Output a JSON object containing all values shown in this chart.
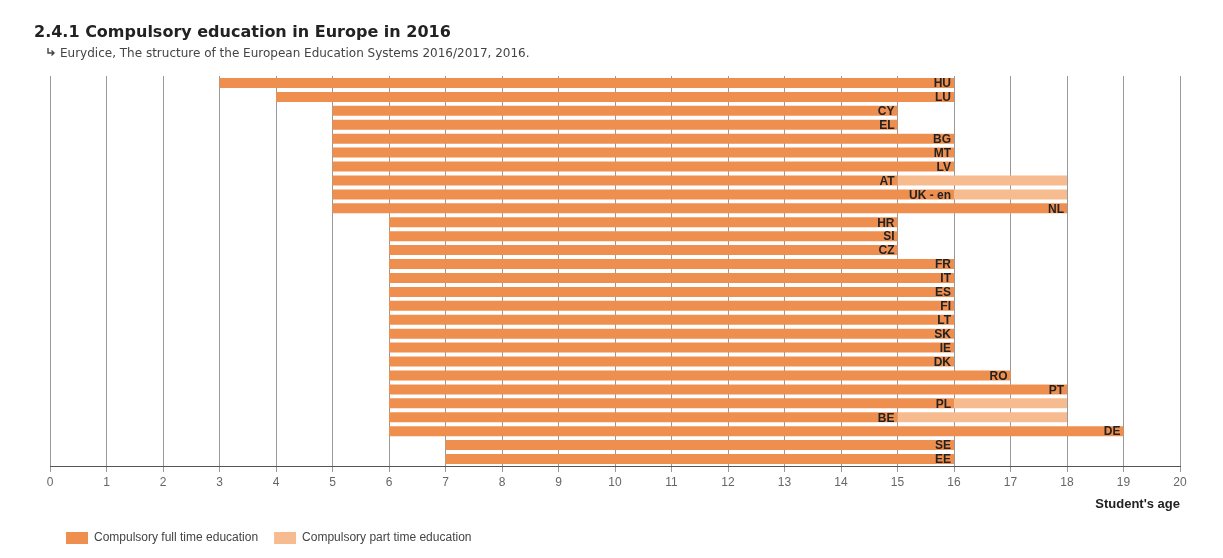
{
  "chart_data": {
    "type": "bar",
    "orientation": "horizontal",
    "title": "2.4.1 Compulsory education in Europe in 2016",
    "subtitle": "Eurydice, The structure of the European Education Systems 2016/2017, 2016.",
    "xlabel": "Student's age",
    "categories": [
      "HU",
      "LU",
      "CY",
      "EL",
      "BG",
      "MT",
      "LV",
      "AT",
      "UK - en",
      "NL",
      "HR",
      "SI",
      "CZ",
      "FR",
      "IT",
      "ES",
      "FI",
      "LT",
      "SK",
      "IE",
      "DK",
      "RO",
      "PT",
      "PL",
      "BE",
      "DE",
      "SE",
      "EE"
    ],
    "series": [
      {
        "name": "Compulsory full time education",
        "color": "#ef8f4f",
        "base": [
          3,
          4,
          5,
          5,
          5,
          5,
          5,
          5,
          5,
          5,
          6,
          6,
          6,
          6,
          6,
          6,
          6,
          6,
          6,
          6,
          6,
          6,
          6,
          6,
          6,
          6,
          7,
          7
        ],
        "values": [
          13,
          12,
          10,
          10,
          11,
          11,
          11,
          10,
          11,
          13,
          9,
          9,
          9,
          10,
          10,
          10,
          10,
          10,
          10,
          10,
          10,
          11,
          12,
          10,
          9,
          13,
          9,
          9
        ]
      },
      {
        "name": "Compulsory part time education",
        "color": "#f7bb90",
        "base": [
          null,
          null,
          null,
          null,
          null,
          null,
          null,
          15,
          16,
          null,
          null,
          null,
          null,
          null,
          null,
          null,
          null,
          null,
          null,
          null,
          null,
          null,
          null,
          16,
          15,
          null,
          null,
          null
        ],
        "values": [
          null,
          null,
          null,
          null,
          null,
          null,
          null,
          3,
          2,
          null,
          null,
          null,
          null,
          null,
          null,
          null,
          null,
          null,
          null,
          null,
          null,
          null,
          null,
          2,
          3,
          null,
          null,
          null
        ]
      }
    ],
    "xlim": [
      0,
      20
    ],
    "xticks": [
      0,
      1,
      2,
      3,
      4,
      5,
      6,
      7,
      8,
      9,
      10,
      11,
      12,
      13,
      14,
      15,
      16,
      17,
      18,
      19,
      20
    ],
    "grid": "x",
    "legend": "bottom",
    "tick_labels": "x"
  }
}
